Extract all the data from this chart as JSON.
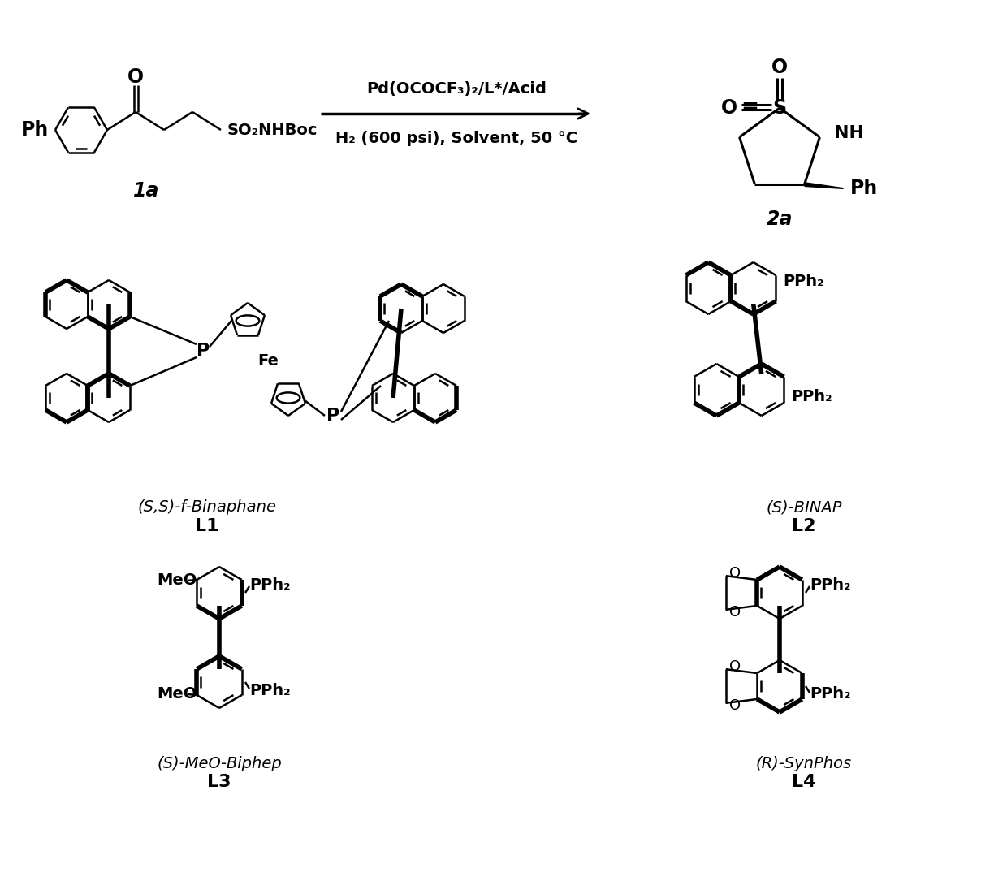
{
  "background": "#ffffff",
  "lw_thin": 1.8,
  "lw_thick": 4.0,
  "lw_med": 2.2,
  "font_main": 15,
  "font_label": 17,
  "font_sub": 13,
  "L1_name": "(S,S)-f-Binaphane",
  "L1_label": "L1",
  "L2_name": "(S)-BINAP",
  "L2_label": "L2",
  "L3_name": "(S)-MeO-Biphep",
  "L3_label": "L3",
  "L4_name": "(R)-SynPhos",
  "L4_label": "L4",
  "arrow_text1": "Pd(OCOCF₃)₂/L*/Acid",
  "arrow_text2": "H₂ (600 psi), Solvent, 50 °C"
}
